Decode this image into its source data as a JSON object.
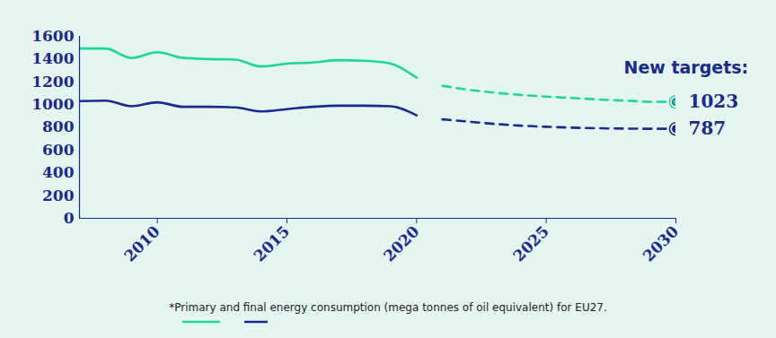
{
  "chart_data": {
    "type": "line",
    "x": [
      2007,
      2008,
      2009,
      2010,
      2011,
      2012,
      2013,
      2014,
      2015,
      2016,
      2017,
      2018,
      2019,
      2020,
      2021,
      2022,
      2023,
      2024,
      2025,
      2026,
      2027,
      2028,
      2029,
      2030
    ],
    "series": [
      {
        "color": "#1ed69c",
        "line_style": "solid",
        "values": [
          1493,
          1493,
          1410,
          1460,
          1410,
          1400,
          1395,
          1335,
          1360,
          1370,
          1390,
          1385,
          1360,
          1236,
          null,
          null,
          null,
          null,
          null,
          null,
          null,
          null,
          null,
          null
        ]
      },
      {
        "color": "#1ed69c",
        "line_style": "dashed",
        "values": [
          null,
          null,
          null,
          null,
          null,
          null,
          null,
          null,
          null,
          null,
          null,
          null,
          null,
          null,
          1165,
          1130,
          1105,
          1085,
          1070,
          1058,
          1045,
          1035,
          1025,
          1023
        ]
      },
      {
        "color": "#1b2a8e",
        "line_style": "solid",
        "values": [
          1030,
          1035,
          985,
          1020,
          980,
          980,
          975,
          940,
          960,
          980,
          990,
          990,
          985,
          905,
          null,
          null,
          null,
          null,
          null,
          null,
          null,
          null,
          null,
          null
        ]
      },
      {
        "color": "#1b2a8e",
        "line_style": "dashed",
        "values": [
          null,
          null,
          null,
          null,
          null,
          null,
          null,
          null,
          null,
          null,
          null,
          null,
          null,
          null,
          870,
          850,
          830,
          815,
          805,
          797,
          792,
          789,
          787,
          787
        ]
      }
    ],
    "xlim": [
      2007,
      2030
    ],
    "xticks": [
      2010,
      2015,
      2020,
      2025,
      2030
    ],
    "ylim": [
      0,
      1600
    ],
    "yticks": [
      0,
      200,
      400,
      600,
      800,
      1000,
      1200,
      1400,
      1600
    ],
    "grid": false,
    "annotations": [
      "New targets:"
    ],
    "targets": [
      {
        "x": 2030,
        "value": 1023,
        "color": "#1ed69c",
        "marker": "circle"
      },
      {
        "x": 2030,
        "value": 787,
        "color": "#1b2a8e",
        "marker": "circle"
      }
    ],
    "caption": "*Primary and final energy consumption (mega tonnes of oil equivalent)  for EU27."
  }
}
